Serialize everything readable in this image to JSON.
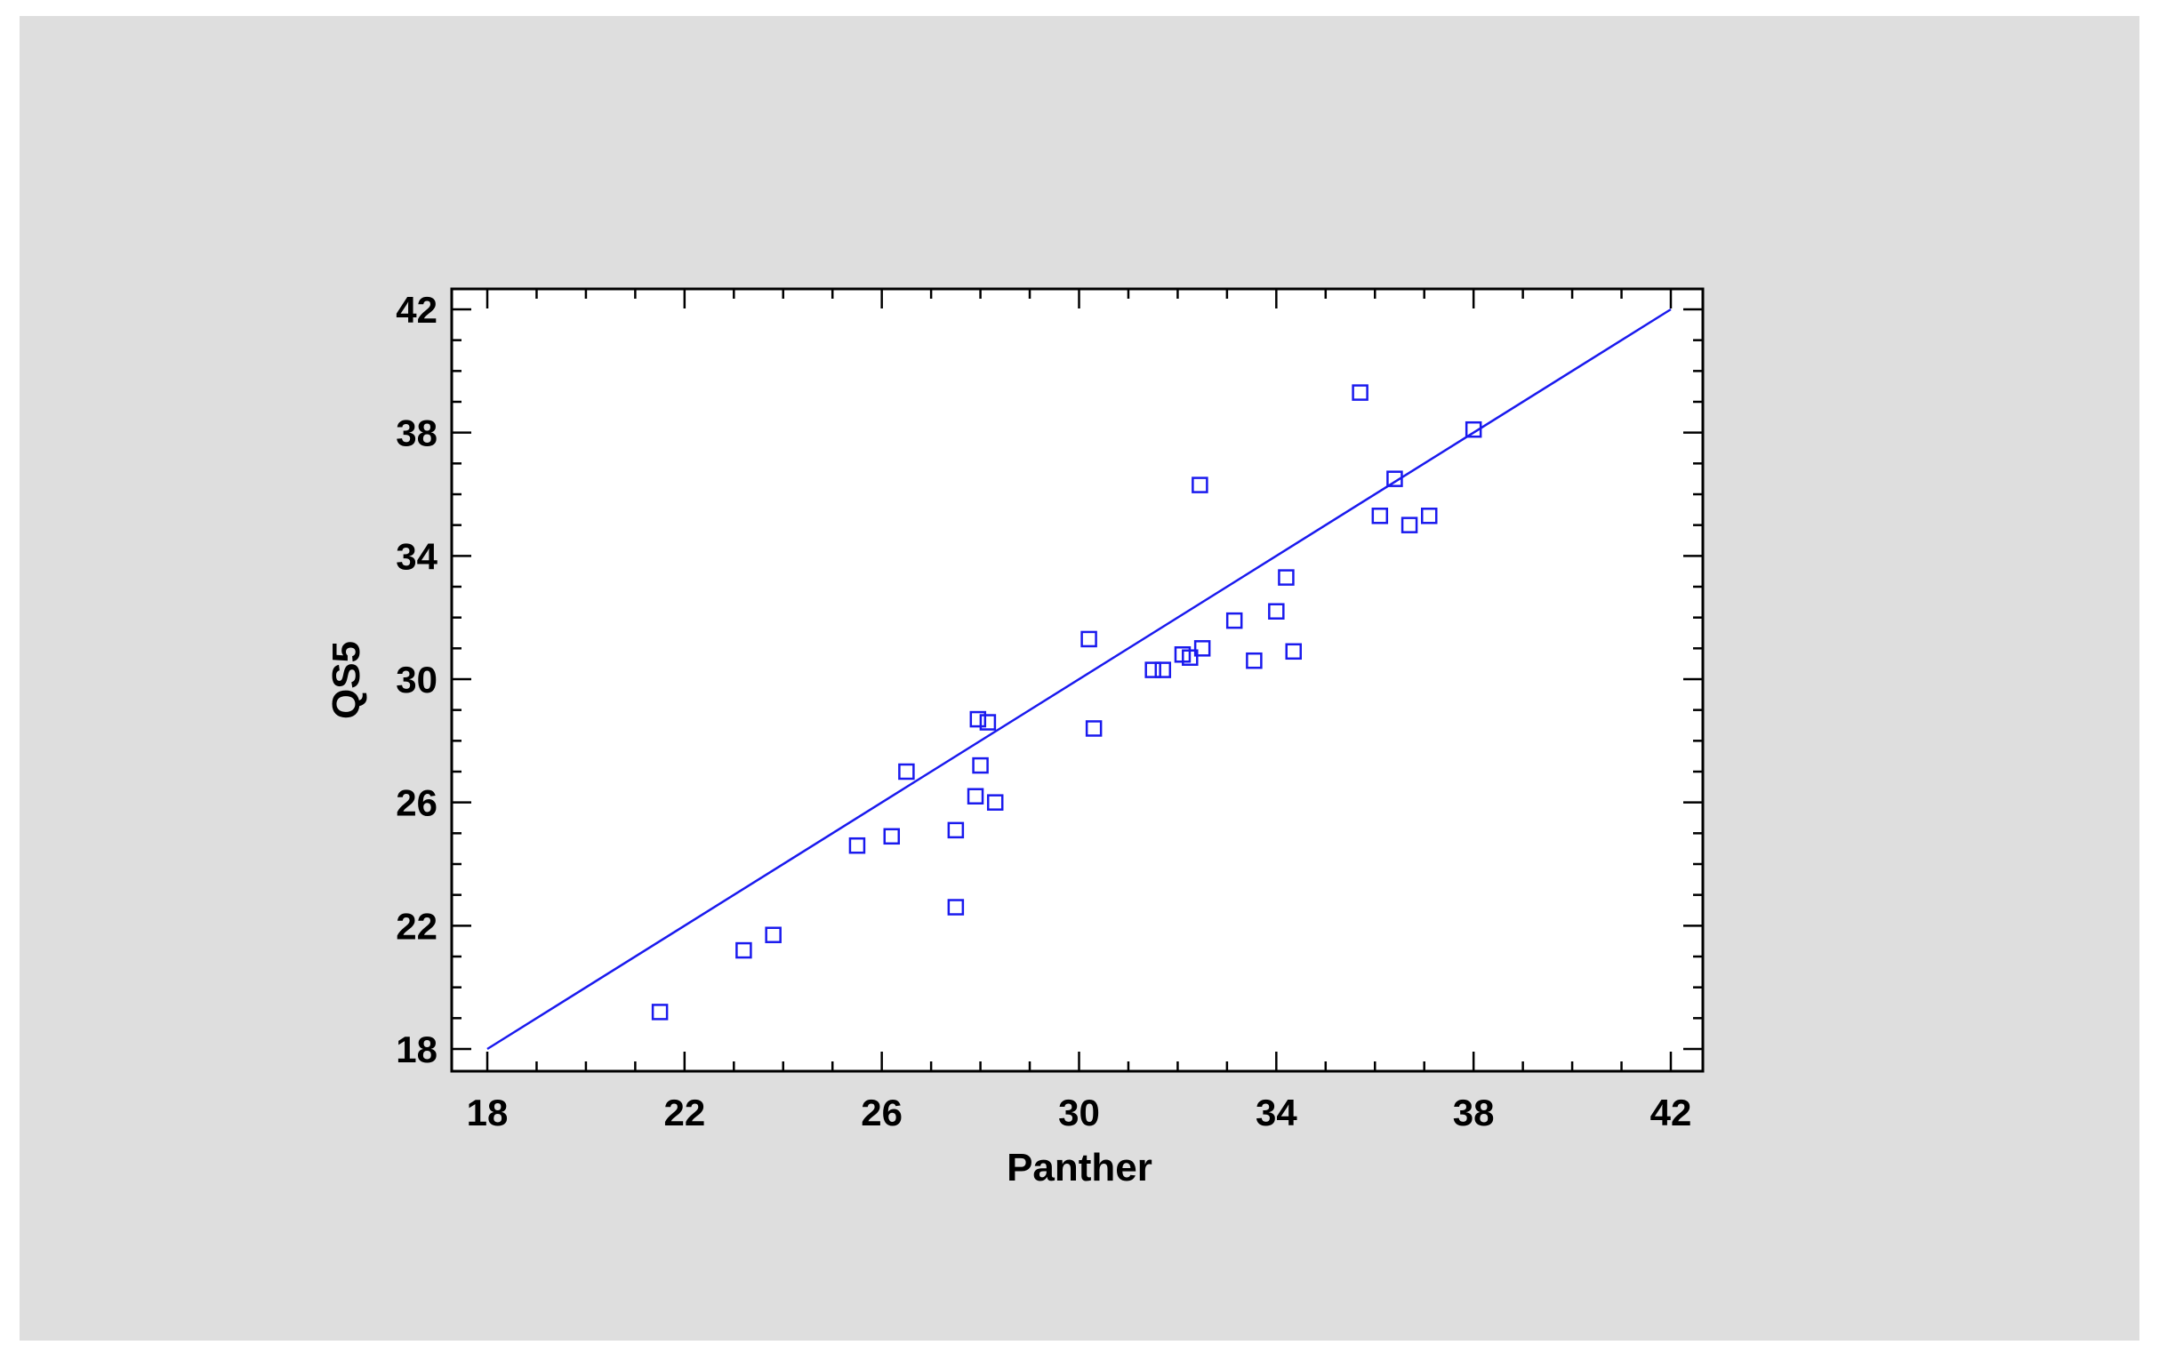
{
  "chart_data": {
    "type": "scatter",
    "xlabel": "Panther",
    "ylabel": "QS5",
    "xlim": [
      18,
      42
    ],
    "ylim": [
      18,
      42
    ],
    "xticks": [
      18,
      22,
      26,
      30,
      34,
      38,
      42
    ],
    "yticks": [
      18,
      22,
      26,
      30,
      34,
      38,
      42
    ],
    "grid": false,
    "colors": {
      "marker": "#1a1aee",
      "line": "#1a1aee",
      "panel": "#dedede",
      "plot_bg": "#ffffff"
    },
    "series": [
      {
        "type": "scatter",
        "marker": "square-open",
        "points": [
          [
            21.5,
            19.2
          ],
          [
            23.2,
            21.2
          ],
          [
            23.8,
            21.7
          ],
          [
            25.5,
            24.6
          ],
          [
            26.2,
            24.9
          ],
          [
            26.5,
            27.0
          ],
          [
            27.5,
            22.6
          ],
          [
            27.5,
            25.1
          ],
          [
            27.9,
            26.2
          ],
          [
            27.95,
            28.7
          ],
          [
            28.0,
            27.2
          ],
          [
            28.15,
            28.6
          ],
          [
            28.3,
            26.0
          ],
          [
            30.2,
            31.3
          ],
          [
            30.3,
            28.4
          ],
          [
            31.5,
            30.3
          ],
          [
            31.7,
            30.3
          ],
          [
            32.1,
            30.8
          ],
          [
            32.25,
            30.7
          ],
          [
            32.5,
            31.0
          ],
          [
            32.45,
            36.3
          ],
          [
            33.15,
            31.9
          ],
          [
            33.55,
            30.6
          ],
          [
            34.0,
            32.2
          ],
          [
            34.2,
            33.3
          ],
          [
            34.35,
            30.9
          ],
          [
            35.7,
            39.3
          ],
          [
            36.1,
            35.3
          ],
          [
            36.4,
            36.5
          ],
          [
            36.7,
            35.0
          ],
          [
            37.1,
            35.3
          ],
          [
            38.0,
            38.1
          ]
        ]
      },
      {
        "type": "line",
        "points": [
          [
            18,
            18.0
          ],
          [
            42,
            42.0
          ]
        ]
      }
    ]
  }
}
